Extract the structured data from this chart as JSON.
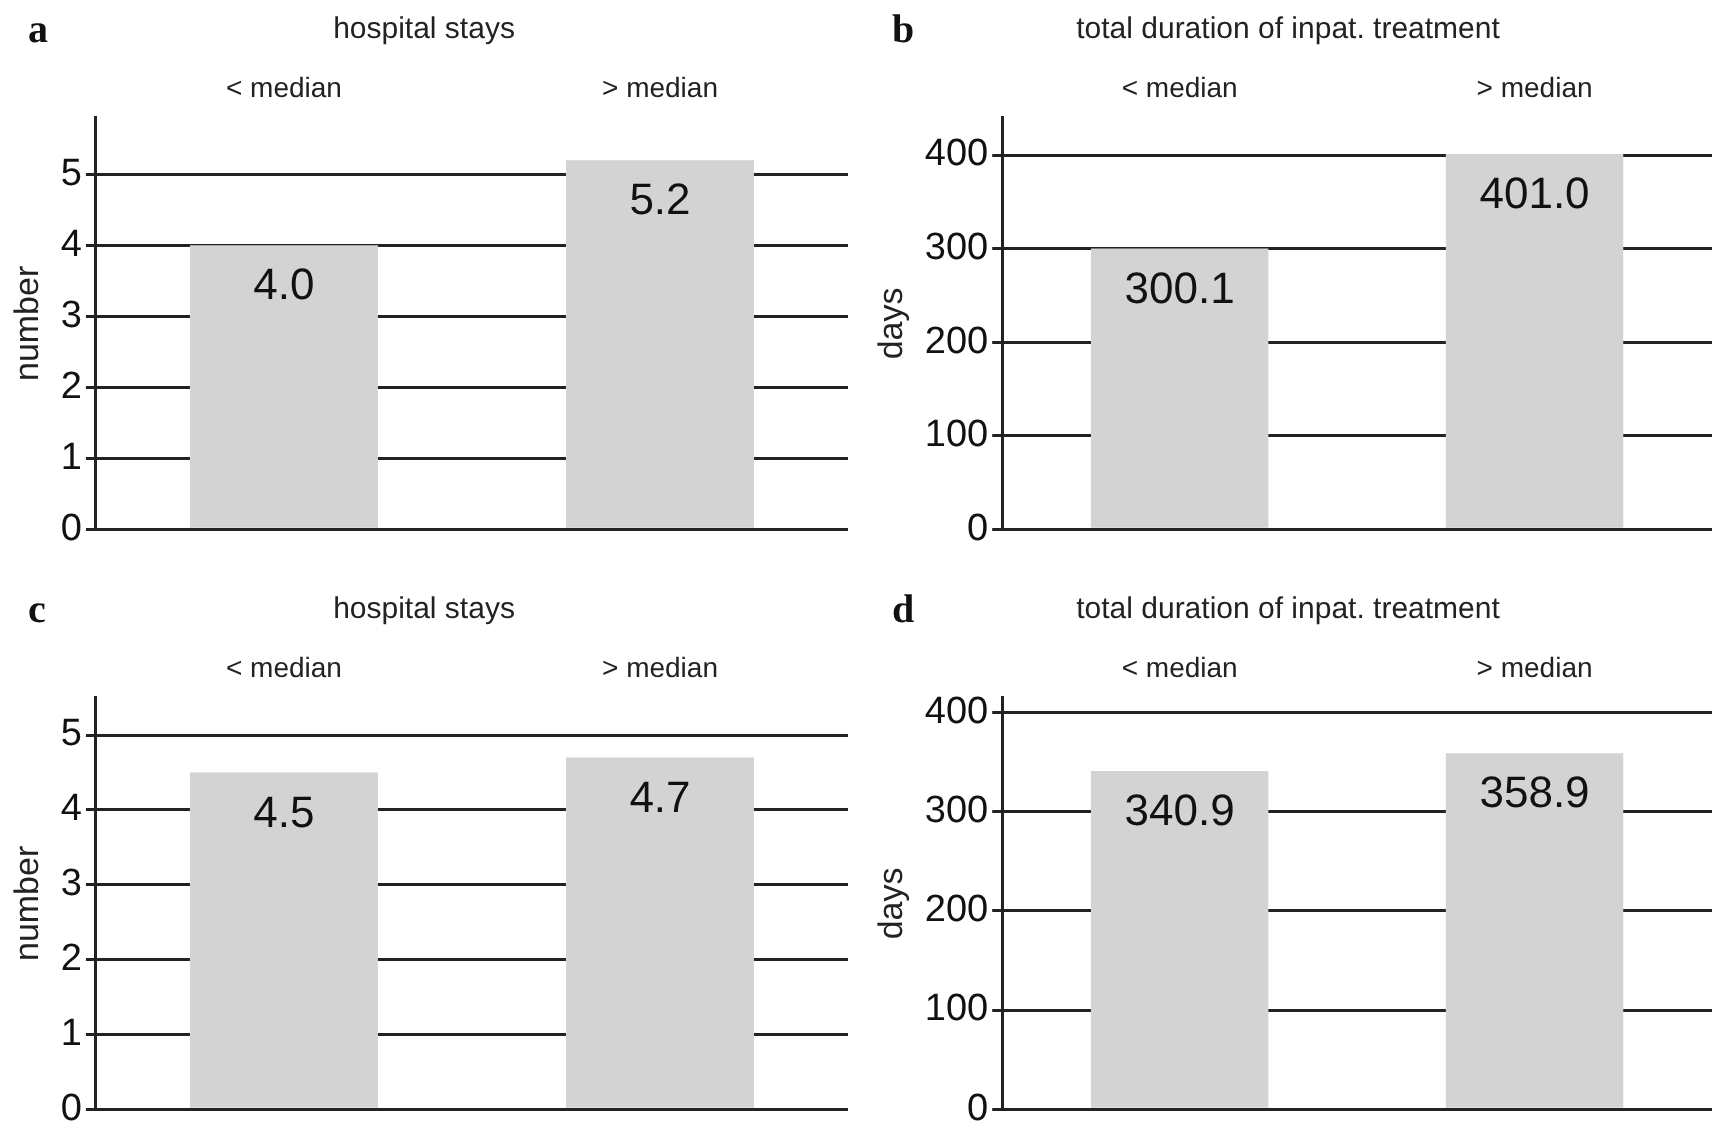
{
  "chart_data": [
    {
      "type": "bar",
      "title": "hospital stays",
      "ylabel": "number",
      "categories": [
        "< median",
        "> median"
      ],
      "values": [
        4.0,
        5.2
      ],
      "value_labels": [
        "4.0",
        "5.2"
      ],
      "color": "#d3d3d3",
      "ylim": [
        0,
        5.8
      ],
      "yticks": [
        0,
        1,
        2,
        3,
        4,
        5
      ],
      "grid": "y",
      "annotations": [
        "a"
      ]
    },
    {
      "type": "bar",
      "title": "total duration of inpat. treatment",
      "ylabel": "days",
      "categories": [
        "< median",
        "> median"
      ],
      "values": [
        300.1,
        401.0
      ],
      "value_labels": [
        "300.1",
        "401.0"
      ],
      "color": "#d3d3d3",
      "ylim": [
        0,
        440
      ],
      "yticks": [
        0,
        100,
        200,
        300,
        400
      ],
      "grid": "y",
      "annotations": [
        "b"
      ]
    },
    {
      "type": "bar",
      "title": "hospital stays",
      "ylabel": "number",
      "categories": [
        "< median",
        "> median"
      ],
      "values": [
        4.5,
        4.7
      ],
      "value_labels": [
        "4.5",
        "4.7"
      ],
      "color": "#d3d3d3",
      "ylim": [
        0,
        5.5
      ],
      "yticks": [
        0,
        1,
        2,
        3,
        4,
        5
      ],
      "grid": "y",
      "annotations": [
        "c"
      ]
    },
    {
      "type": "bar",
      "title": "total duration of inpat. treatment",
      "ylabel": "days",
      "categories": [
        "< median",
        "> median"
      ],
      "values": [
        340.9,
        358.9
      ],
      "value_labels": [
        "340.9",
        "358.9"
      ],
      "color": "#d3d3d3",
      "ylim": [
        0,
        415
      ],
      "yticks": [
        0,
        100,
        200,
        300,
        400
      ],
      "grid": "y",
      "annotations": [
        "d"
      ]
    }
  ]
}
